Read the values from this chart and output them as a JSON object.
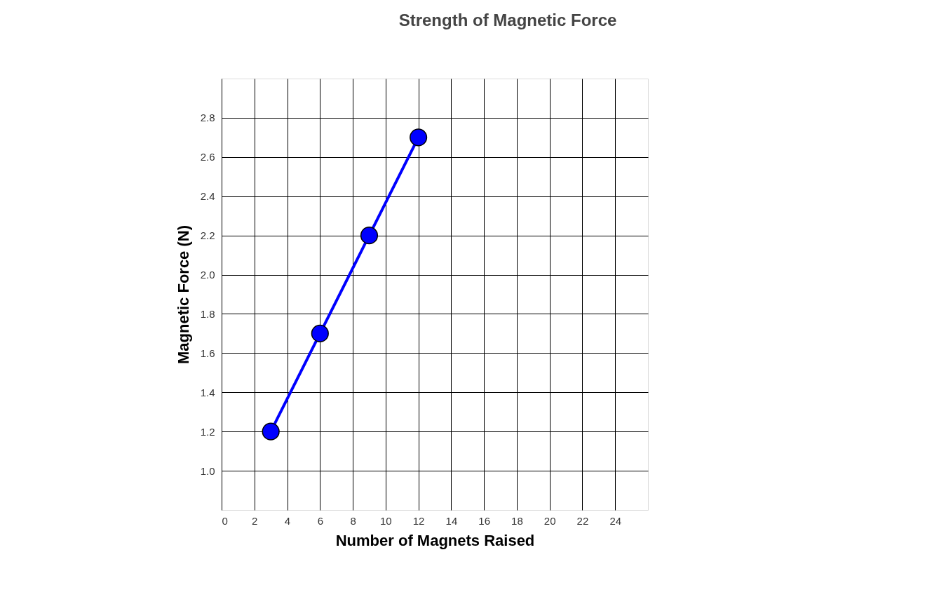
{
  "chart_data": {
    "type": "line",
    "title": "Strength of Magnetic Force",
    "xlabel": "Number of Magnets Raised",
    "ylabel": "Magnetic Force (N)",
    "x": [
      3,
      6,
      9,
      12
    ],
    "series": [
      {
        "color": "#0000ff",
        "values": [
          1.2,
          1.7,
          2.2,
          2.7
        ]
      }
    ],
    "xlim": [
      0,
      26
    ],
    "xticks": [
      0,
      2,
      4,
      6,
      8,
      10,
      12,
      14,
      16,
      18,
      20,
      22,
      24
    ],
    "ylim": [
      0.8,
      3.0
    ],
    "yticks": [
      {
        "value": 1.0,
        "label": "1.0"
      },
      1.2,
      1.4,
      1.6,
      1.8,
      {
        "value": 2.0,
        "label": "2.0"
      },
      2.2,
      2.4,
      2.6,
      2.8
    ],
    "grid": true,
    "marker": "circle",
    "line_style": "solid",
    "legend": false
  }
}
